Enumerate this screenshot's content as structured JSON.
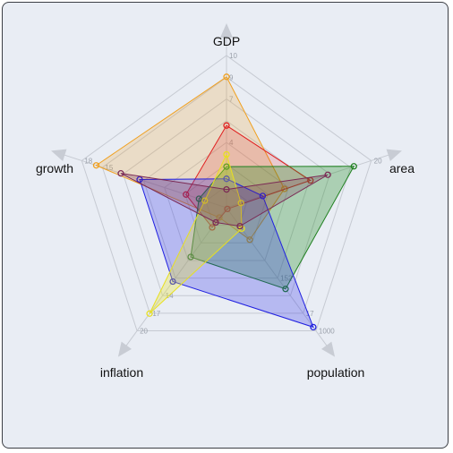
{
  "chart_data": {
    "type": "radar",
    "axes": [
      "GDP",
      "area",
      "population",
      "inflation",
      "growth"
    ],
    "ticks": {
      "GDP": [
        "",
        "",
        "4",
        "",
        "7",
        "9",
        "10"
      ],
      "area": [
        "",
        "",
        "",
        "",
        "",
        "",
        "20"
      ],
      "population": [
        "",
        "",
        "",
        "152",
        "",
        "17",
        "1000"
      ],
      "inflation": [
        "",
        "",
        "",
        "",
        "14",
        "17",
        "20"
      ],
      "growth": [
        "",
        "",
        "",
        "",
        "",
        "15",
        "18"
      ]
    },
    "range": [
      0,
      1
    ],
    "grid": true,
    "series": [
      {
        "color": "#f0a020",
        "fill": "rgba(235,160,40,0.22)",
        "values": [
          0.86,
          0.4,
          0.26,
          0.08,
          0.9
        ]
      },
      {
        "color": "#e02020",
        "fill": "rgba(230,40,40,0.18)",
        "values": [
          0.54,
          0.58,
          0.01,
          0.16,
          0.28
        ]
      },
      {
        "color": "#208020",
        "fill": "rgba(30,140,30,0.30)",
        "values": [
          0.27,
          0.88,
          0.66,
          0.4,
          0.19
        ]
      },
      {
        "color": "#2020e0",
        "fill": "rgba(40,40,230,0.26)",
        "values": [
          0.19,
          0.25,
          0.97,
          0.6,
          0.6
        ]
      },
      {
        "color": "#e8e020",
        "fill": "rgba(235,230,40,0.30)",
        "values": [
          0.35,
          0.1,
          0.17,
          0.86,
          0.15
        ]
      },
      {
        "color": "#7b2a55",
        "fill": "rgba(123,42,85,0.22)",
        "values": [
          0.12,
          0.7,
          0.15,
          0.12,
          0.73
        ]
      }
    ]
  }
}
